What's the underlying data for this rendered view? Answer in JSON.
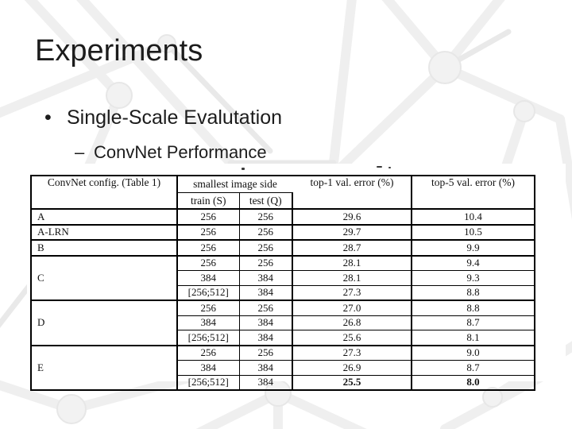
{
  "slide": {
    "title": "Experiments",
    "bullets": [
      {
        "marker": "•",
        "text": "Single-Scale Evalutation"
      },
      {
        "marker": "–",
        "text": "ConvNet Performance"
      }
    ]
  },
  "table": {
    "header": {
      "config": "ConvNet config. (Table 1)",
      "image_side_group": "smallest image side",
      "train": "train (S)",
      "test": "test (Q)",
      "top1": "top-1 val. error (%)",
      "top5": "top-5 val. error (%)"
    },
    "groups": [
      {
        "config": "A",
        "rows": [
          {
            "train": "256",
            "test": "256",
            "top1": "29.6",
            "top5": "10.4",
            "bold": false
          }
        ]
      },
      {
        "config": "A-LRN",
        "rows": [
          {
            "train": "256",
            "test": "256",
            "top1": "29.7",
            "top5": "10.5",
            "bold": false
          }
        ]
      },
      {
        "config": "B",
        "rows": [
          {
            "train": "256",
            "test": "256",
            "top1": "28.7",
            "top5": "9.9",
            "bold": false
          }
        ]
      },
      {
        "config": "C",
        "rows": [
          {
            "train": "256",
            "test": "256",
            "top1": "28.1",
            "top5": "9.4",
            "bold": false
          },
          {
            "train": "384",
            "test": "384",
            "top1": "28.1",
            "top5": "9.3",
            "bold": false
          },
          {
            "train": "[256;512]",
            "test": "384",
            "top1": "27.3",
            "top5": "8.8",
            "bold": false
          }
        ]
      },
      {
        "config": "D",
        "rows": [
          {
            "train": "256",
            "test": "256",
            "top1": "27.0",
            "top5": "8.8",
            "bold": false
          },
          {
            "train": "384",
            "test": "384",
            "top1": "26.8",
            "top5": "8.7",
            "bold": false
          },
          {
            "train": "[256;512]",
            "test": "384",
            "top1": "25.6",
            "top5": "8.1",
            "bold": false
          }
        ]
      },
      {
        "config": "E",
        "rows": [
          {
            "train": "256",
            "test": "256",
            "top1": "27.3",
            "top5": "9.0",
            "bold": false
          },
          {
            "train": "384",
            "test": "384",
            "top1": "26.9",
            "top5": "8.7",
            "bold": false
          },
          {
            "train": "[256;512]",
            "test": "384",
            "top1": "25.5",
            "top5": "8.0",
            "bold": true
          }
        ]
      }
    ]
  },
  "colors": {
    "text": "#1c1c1c",
    "table_border": "#000000",
    "background": "#ffffff",
    "pattern": "#ededed"
  }
}
